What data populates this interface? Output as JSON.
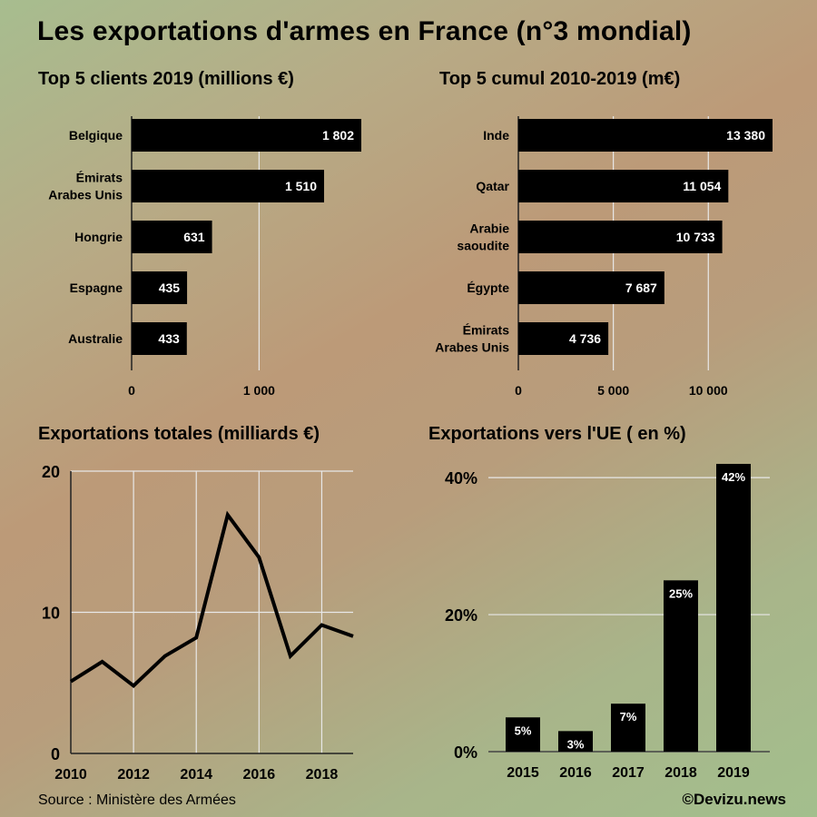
{
  "title": "Les exportations d'armes en France (n°3 mondial)",
  "source": "Source : Ministère des Armées",
  "credit": "©Devizu.news",
  "chart_data": [
    {
      "id": "top5-2019",
      "type": "bar",
      "orientation": "horizontal",
      "title": "Top 5 clients 2019 (millions €)",
      "categories": [
        [
          "Belgique"
        ],
        [
          "Émirats",
          "Arabes Unis"
        ],
        [
          "Hongrie"
        ],
        [
          "Espagne"
        ],
        [
          "Australie"
        ]
      ],
      "values": [
        1802,
        1510,
        631,
        435,
        433
      ],
      "value_labels": [
        "1 802",
        "1 510",
        "631",
        "435",
        "433"
      ],
      "xlim": [
        0,
        1802
      ],
      "xticks": [
        0,
        1000
      ],
      "xtick_labels": [
        "0",
        "1 000"
      ],
      "grid": true,
      "bar_color": "#000000"
    },
    {
      "id": "top5-cumul",
      "type": "bar",
      "orientation": "horizontal",
      "title": "Top 5 cumul 2010-2019 (m€)",
      "categories": [
        [
          "Inde"
        ],
        [
          "Qatar"
        ],
        [
          "Arabie",
          "saoudite"
        ],
        [
          "Égypte"
        ],
        [
          "Émirats",
          "Arabes Unis"
        ]
      ],
      "values": [
        13380,
        11054,
        10733,
        7687,
        4736
      ],
      "value_labels": [
        "13 380",
        "11 054",
        "10 733",
        "7 687",
        "4 736"
      ],
      "xlim": [
        0,
        13380
      ],
      "xticks": [
        0,
        5000,
        10000
      ],
      "xtick_labels": [
        "0",
        "5 000",
        "10 000"
      ],
      "grid": true,
      "bar_color": "#000000"
    },
    {
      "id": "total-exports",
      "type": "line",
      "title": "Exportations totales (milliards €)",
      "x": [
        2010,
        2011,
        2012,
        2013,
        2014,
        2015,
        2016,
        2017,
        2018,
        2019
      ],
      "values": [
        5.1,
        6.5,
        4.8,
        6.9,
        8.2,
        16.9,
        13.9,
        6.9,
        9.1,
        8.3
      ],
      "xlim": [
        2010,
        2019
      ],
      "ylim": [
        0,
        20
      ],
      "xticks": [
        2010,
        2012,
        2014,
        2016,
        2018
      ],
      "yticks": [
        0,
        10,
        20
      ],
      "grid": true,
      "line_color": "#000000"
    },
    {
      "id": "eu-share",
      "type": "bar",
      "title": "Exportations vers l'UE ( en %)",
      "categories": [
        "2015",
        "2016",
        "2017",
        "2018",
        "2019"
      ],
      "values": [
        5,
        3,
        7,
        25,
        42
      ],
      "value_labels": [
        "5%",
        "3%",
        "7%",
        "25%",
        "42%"
      ],
      "ylim": [
        0,
        42
      ],
      "yticks": [
        0,
        20,
        40
      ],
      "ytick_labels": [
        "0%",
        "20%",
        "40%"
      ],
      "grid": true,
      "bar_color": "#000000"
    }
  ]
}
